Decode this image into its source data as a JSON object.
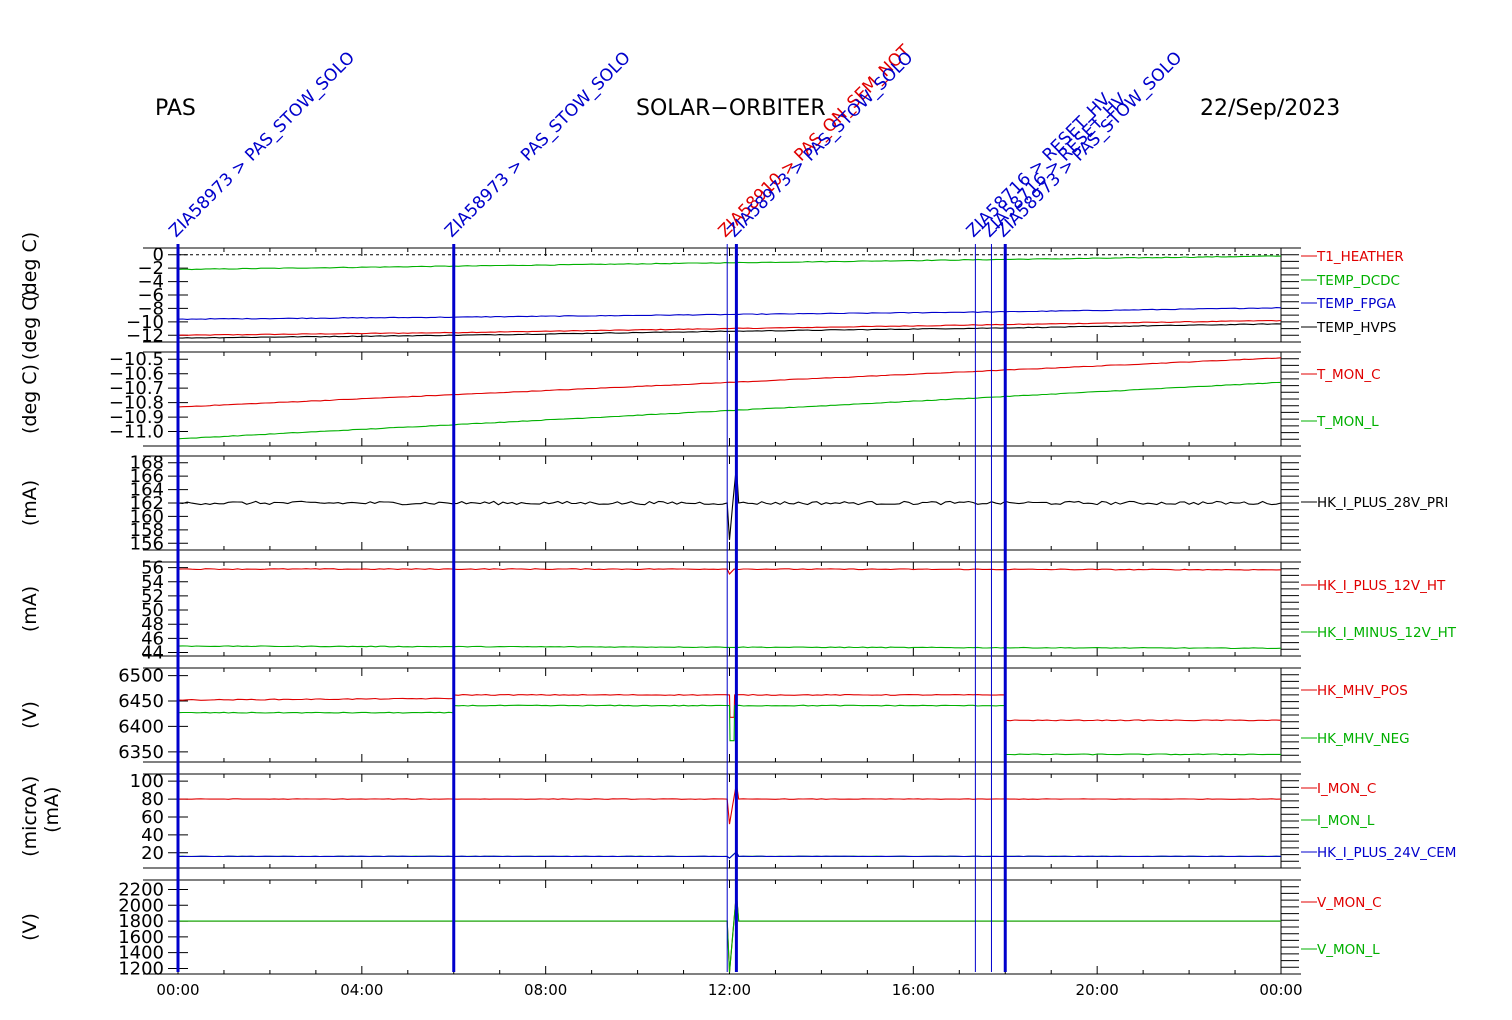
{
  "header": {
    "left": "PAS",
    "center": "SOLAR−ORBITER",
    "right": "22/Sep/2023"
  },
  "colors": {
    "red": "#e00000",
    "green": "#00b000",
    "blue": "#0000cc",
    "black": "#000000"
  },
  "chart_data": {
    "type": "line",
    "x_unit": "time of day",
    "x_ticks": [
      "00:00",
      "04:00",
      "08:00",
      "12:00",
      "16:00",
      "20:00",
      "00:00"
    ],
    "xlim_hours": [
      0,
      24
    ],
    "events": [
      {
        "t": 0.0,
        "label": "ZIA58973 > PAS_STOW_SOLO"
      },
      {
        "t": 6.0,
        "label": "ZIA58973 > PAS_STOW_SOLO"
      },
      {
        "t": 11.95,
        "label": "ZIA58910 > PAS_ON_SEM_NOT"
      },
      {
        "t": 12.15,
        "label": "ZIA58973 > PAS_STOW_SOLO"
      },
      {
        "t": 17.35,
        "label": "ZIA58716 > RESET_HV"
      },
      {
        "t": 17.7,
        "label": "ZIA58716 > RESET_HV"
      },
      {
        "t": 18.0,
        "label": "ZIA58973 > PAS_STOW_SOLO"
      }
    ],
    "panels": [
      {
        "ylabel": "(deg C)",
        "ylabel2": "(deg C)",
        "ylim": [
          -13,
          1
        ],
        "yticks": [
          {
            "v": 0,
            "label": "0"
          },
          {
            "v": -2,
            "label": "−2"
          },
          {
            "v": -4,
            "label": "−4"
          },
          {
            "v": -6,
            "label": "−6"
          },
          {
            "v": -8,
            "label": "−8"
          },
          {
            "v": -10,
            "label": "−10"
          },
          {
            "v": -12,
            "label": "−12"
          }
        ],
        "dashed_line": 0,
        "series": [
          {
            "name": "T1_HEATHER",
            "color": "#e00000",
            "x": [
              0,
              6,
              12,
              18,
              24
            ],
            "y": [
              -12.0,
              -11.6,
              -11.0,
              -10.4,
              -9.8
            ],
            "noise": 0.05
          },
          {
            "name": "TEMP_DCDC",
            "color": "#00b000",
            "x": [
              0,
              6,
              12,
              18,
              24
            ],
            "y": [
              -2.2,
              -1.7,
              -1.2,
              -0.7,
              -0.2
            ],
            "noise": 0.05
          },
          {
            "name": "TEMP_FPGA",
            "color": "#0000cc",
            "x": [
              0,
              6,
              12,
              18,
              24
            ],
            "y": [
              -9.6,
              -9.3,
              -8.9,
              -8.5,
              -7.9
            ],
            "noise": 0.05
          },
          {
            "name": "TEMP_HVPS",
            "color": "#000000",
            "x": [
              0,
              6,
              12,
              18,
              24
            ],
            "y": [
              -12.4,
              -12.0,
              -11.4,
              -10.9,
              -10.3
            ],
            "noise": 0.05
          }
        ]
      },
      {
        "ylabel": "(deg C)",
        "ylim": [
          -11.1,
          -10.45
        ],
        "yticks": [
          {
            "v": -10.5,
            "label": "−10.5"
          },
          {
            "v": -10.6,
            "label": "−10.6"
          },
          {
            "v": -10.7,
            "label": "−10.7"
          },
          {
            "v": -10.8,
            "label": "−10.8"
          },
          {
            "v": -10.9,
            "label": "−10.9"
          },
          {
            "v": -11.0,
            "label": "−11.0"
          }
        ],
        "series": [
          {
            "name": "T_MON_C",
            "color": "#e00000",
            "x": [
              0,
              24
            ],
            "y": [
              -10.83,
              -10.49
            ],
            "noise": 0.002
          },
          {
            "name": "T_MON_L",
            "color": "#00b000",
            "x": [
              0,
              24
            ],
            "y": [
              -11.05,
              -10.66
            ],
            "noise": 0.002
          }
        ]
      },
      {
        "ylabel": "(mA)",
        "ylim": [
          155,
          169
        ],
        "yticks": [
          {
            "v": 168,
            "label": "168"
          },
          {
            "v": 166,
            "label": "166"
          },
          {
            "v": 164,
            "label": "164"
          },
          {
            "v": 162,
            "label": "162"
          },
          {
            "v": 160,
            "label": "160"
          },
          {
            "v": 158,
            "label": "158"
          },
          {
            "v": 156,
            "label": "156"
          }
        ],
        "series": [
          {
            "name": "HK_I_PLUS_28V_PRI",
            "color": "#000000",
            "x": [
              0,
              11.95,
              12.0,
              12.15,
              12.2,
              24
            ],
            "y": [
              162.0,
              162.0,
              156.5,
              167.5,
              162.0,
              162.0
            ],
            "noise": 0.25
          }
        ]
      },
      {
        "ylabel": "(mA)",
        "ylim": [
          43.5,
          56.8
        ],
        "yticks": [
          {
            "v": 56,
            "label": "56"
          },
          {
            "v": 54,
            "label": "54"
          },
          {
            "v": 52,
            "label": "52"
          },
          {
            "v": 50,
            "label": "50"
          },
          {
            "v": 48,
            "label": "48"
          },
          {
            "v": 46,
            "label": "46"
          },
          {
            "v": 44,
            "label": "44"
          }
        ],
        "series": [
          {
            "name": "HK_I_PLUS_12V_HT",
            "color": "#e00000",
            "x": [
              0,
              11.95,
              12.0,
              12.1,
              24
            ],
            "y": [
              55.8,
              55.8,
              55.1,
              55.8,
              55.7
            ],
            "noise": 0.06
          },
          {
            "name": "HK_I_MINUS_12V_HT",
            "color": "#00b000",
            "x": [
              0,
              24
            ],
            "y": [
              44.9,
              44.6
            ],
            "noise": 0.05
          }
        ]
      },
      {
        "ylabel": "(V)",
        "ylim": [
          6330,
          6515
        ],
        "yticks": [
          {
            "v": 6500,
            "label": "6500"
          },
          {
            "v": 6450,
            "label": "6450"
          },
          {
            "v": 6400,
            "label": "6400"
          },
          {
            "v": 6350,
            "label": "6350"
          }
        ],
        "series": [
          {
            "name": "HK_MHV_POS",
            "color": "#e00000",
            "x": [
              0,
              5.99,
              6.0,
              12.0,
              12.01,
              12.1,
              12.11,
              18.0,
              18.01,
              24
            ],
            "y": [
              6452,
              6455,
              6462,
              6462,
              6418,
              6418,
              6462,
              6462,
              6412,
              6412
            ],
            "noise": 0.8
          },
          {
            "name": "HK_MHV_NEG",
            "color": "#00b000",
            "x": [
              0,
              5.99,
              6.0,
              6.01,
              12.0,
              12.01,
              12.1,
              12.11,
              18.0,
              18.01,
              24
            ],
            "y": [
              6427,
              6427,
              6375,
              6441,
              6441,
              6372,
              6372,
              6441,
              6441,
              6345,
              6345
            ],
            "noise": 0.8
          }
        ]
      },
      {
        "ylabel": "(mA)",
        "ylabel2": "(microA)",
        "ylim": [
          3,
          108
        ],
        "yticks": [
          {
            "v": 100,
            "label": "100"
          },
          {
            "v": 80,
            "label": "80"
          },
          {
            "v": 60,
            "label": "60"
          },
          {
            "v": 40,
            "label": "40"
          },
          {
            "v": 20,
            "label": "20"
          }
        ],
        "series": [
          {
            "name": "I_MON_C",
            "color": "#e00000",
            "x": [
              0,
              11.95,
              12.0,
              12.15,
              12.2,
              24
            ],
            "y": [
              80,
              80,
              52,
              97,
              80,
              80
            ],
            "noise": 0.3
          },
          {
            "name": "I_MON_L",
            "color": "#00b000",
            "x": [
              0,
              11.95,
              12.0,
              12.15,
              12.2,
              24
            ],
            "y": [
              16,
              16,
              14,
              21,
              16,
              16
            ],
            "noise": 0.15
          },
          {
            "name": "HK_I_PLUS_24V_CEM",
            "color": "#0000cc",
            "x": [
              0,
              11.95,
              12.0,
              12.15,
              12.2,
              24
            ],
            "y": [
              16,
              16,
              14,
              21,
              16,
              16
            ],
            "noise": 0.2
          }
        ]
      },
      {
        "ylabel": "(V)",
        "ylim": [
          1130,
          2320
        ],
        "yticks": [
          {
            "v": 2200,
            "label": "2200"
          },
          {
            "v": 2000,
            "label": "2000"
          },
          {
            "v": 1800,
            "label": "1800"
          },
          {
            "v": 1600,
            "label": "1600"
          },
          {
            "v": 1400,
            "label": "1400"
          },
          {
            "v": 1200,
            "label": "1200"
          }
        ],
        "series": [
          {
            "name": "V_MON_C",
            "color": "#e00000",
            "x": [
              0,
              11.95,
              12.0,
              12.15,
              12.2,
              24
            ],
            "y": [
              1800,
              1800,
              1150,
              2150,
              1800,
              1800
            ],
            "noise": 0
          },
          {
            "name": "V_MON_L",
            "color": "#00b000",
            "x": [
              0,
              11.95,
              12.0,
              12.15,
              12.2,
              24
            ],
            "y": [
              1800,
              1800,
              1150,
              2150,
              1800,
              1800
            ],
            "noise": 0
          }
        ]
      }
    ]
  }
}
